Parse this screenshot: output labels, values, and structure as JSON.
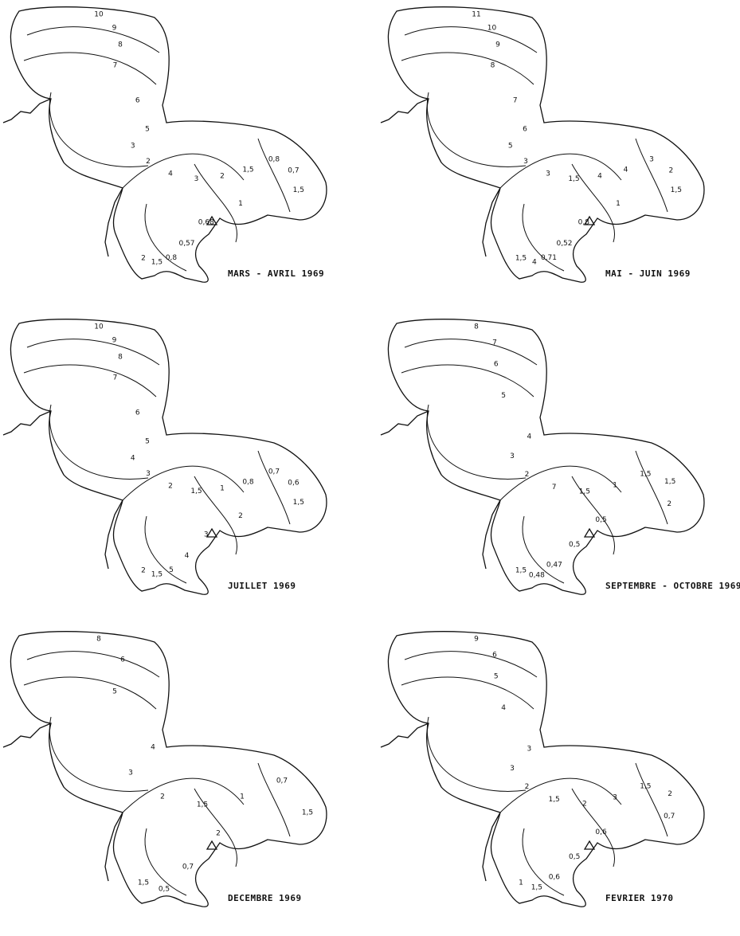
{
  "panels": [
    {
      "title": "MARS - AVRIL 1969",
      "contours": [
        "10",
        "9",
        "8",
        "7",
        "6",
        "5",
        "3",
        "2",
        "4",
        "3",
        "2",
        "1,5",
        "0,8",
        "0,7",
        "1,5",
        "1",
        "0,68",
        "0,57",
        "0,8",
        "1,5",
        "2"
      ]
    },
    {
      "title": "MAI - JUIN 1969",
      "contours": [
        "11",
        "10",
        "9",
        "8",
        "7",
        "6",
        "5",
        "3",
        "3",
        "1,5",
        "4",
        "4",
        "3",
        "2",
        "1,5",
        "1",
        "0,8",
        "0,52",
        "0,71",
        "4",
        "1,5"
      ]
    },
    {
      "title": "JUILLET 1969",
      "contours": [
        "10",
        "9",
        "8",
        "7",
        "6",
        "5",
        "4",
        "3",
        "2",
        "1,5",
        "1",
        "0,8",
        "0,7",
        "0,6",
        "1,5",
        "2",
        "3",
        "4",
        "5",
        "1,5",
        "2"
      ]
    },
    {
      "title": "SEPTEMBRE - OCTOBRE 1969",
      "contours": [
        "8",
        "7",
        "6",
        "5",
        "4",
        "3",
        "2",
        "7",
        "1,5",
        "1",
        "1,5",
        "1,5",
        "2",
        "0,5",
        "0,5",
        "0,47",
        "0,48",
        "1,5"
      ]
    },
    {
      "title": "DECEMBRE 1969",
      "contours": [
        "8",
        "6",
        "5",
        "4",
        "3",
        "2",
        "1,5",
        "1",
        "0,7",
        "1,5",
        "2",
        "0,7",
        "0,5",
        "1,5"
      ]
    },
    {
      "title": "FEVRIER 1970",
      "contours": [
        "9",
        "6",
        "5",
        "4",
        "3",
        "3",
        "2",
        "1,5",
        "2",
        "3",
        "1,5",
        "2",
        "0,7",
        "0,6",
        "0,5",
        "0,6",
        "1,5",
        "1"
      ]
    }
  ]
}
